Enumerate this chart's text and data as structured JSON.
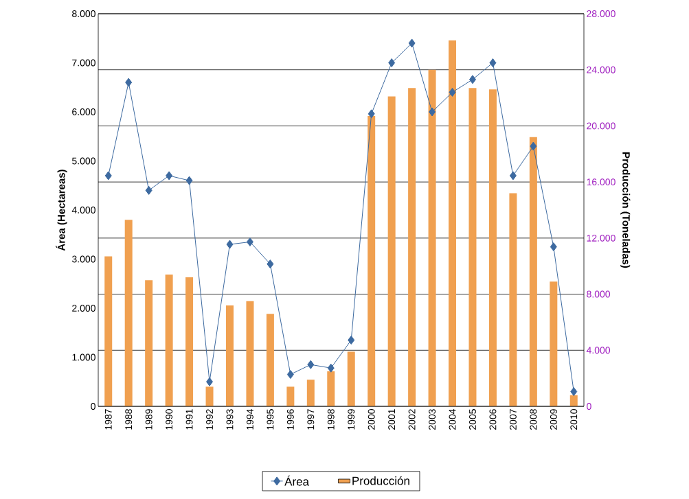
{
  "chart_data": {
    "type": "bar",
    "ylabel": "Área (Hectareas)",
    "y2label": "Producción (Toneladas)",
    "categories": [
      "1987",
      "1988",
      "1989",
      "1990",
      "1991",
      "1992",
      "1993",
      "1994",
      "1995",
      "1996",
      "1997",
      "1998",
      "1999",
      "2000",
      "2001",
      "2002",
      "2003",
      "2004",
      "2005",
      "2006",
      "2007",
      "2008",
      "2009",
      "2010"
    ],
    "series": [
      {
        "name": "Área",
        "type": "line",
        "axis": "y",
        "color": "#3d6aa0",
        "marker": "diamond",
        "line_style": "solid",
        "values": [
          4700,
          6600,
          4400,
          4700,
          4600,
          500,
          3300,
          3350,
          2900,
          650,
          850,
          780,
          1350,
          5960,
          7000,
          7400,
          6000,
          6400,
          6660,
          7000,
          4700,
          5300,
          3250,
          300
        ]
      },
      {
        "name": "Producción",
        "axis": "y2",
        "color": "#f0a050",
        "values": [
          10700,
          13300,
          9000,
          9400,
          9200,
          1400,
          7200,
          7500,
          6600,
          1400,
          1900,
          2500,
          3900,
          20700,
          22100,
          22700,
          24000,
          26100,
          22700,
          22600,
          15200,
          19200,
          8900,
          800
        ]
      }
    ],
    "ylim": [
      0,
      8000
    ],
    "yticks": [
      {
        "value": 0,
        "label": "0"
      },
      {
        "value": 1000,
        "label": "1.000"
      },
      {
        "value": 2000,
        "label": "2.000"
      },
      {
        "value": 3000,
        "label": "3.000"
      },
      {
        "value": 4000,
        "label": "4.000"
      },
      {
        "value": 5000,
        "label": "5.000"
      },
      {
        "value": 6000,
        "label": "6.000"
      },
      {
        "value": 7000,
        "label": "7.000"
      },
      {
        "value": 8000,
        "label": "8.000"
      }
    ],
    "y2lim": [
      0,
      28000
    ],
    "y2ticks": [
      {
        "value": 0,
        "label": "0"
      },
      {
        "value": 4000,
        "label": "4.000"
      },
      {
        "value": 8000,
        "label": "8.000"
      },
      {
        "value": 12000,
        "label": "12.000"
      },
      {
        "value": 16000,
        "label": "16.000"
      },
      {
        "value": 20000,
        "label": "20.000"
      },
      {
        "value": 24000,
        "label": "24.000"
      },
      {
        "value": 28000,
        "label": "28.000"
      }
    ],
    "grid": "y",
    "legend": "bottom"
  }
}
